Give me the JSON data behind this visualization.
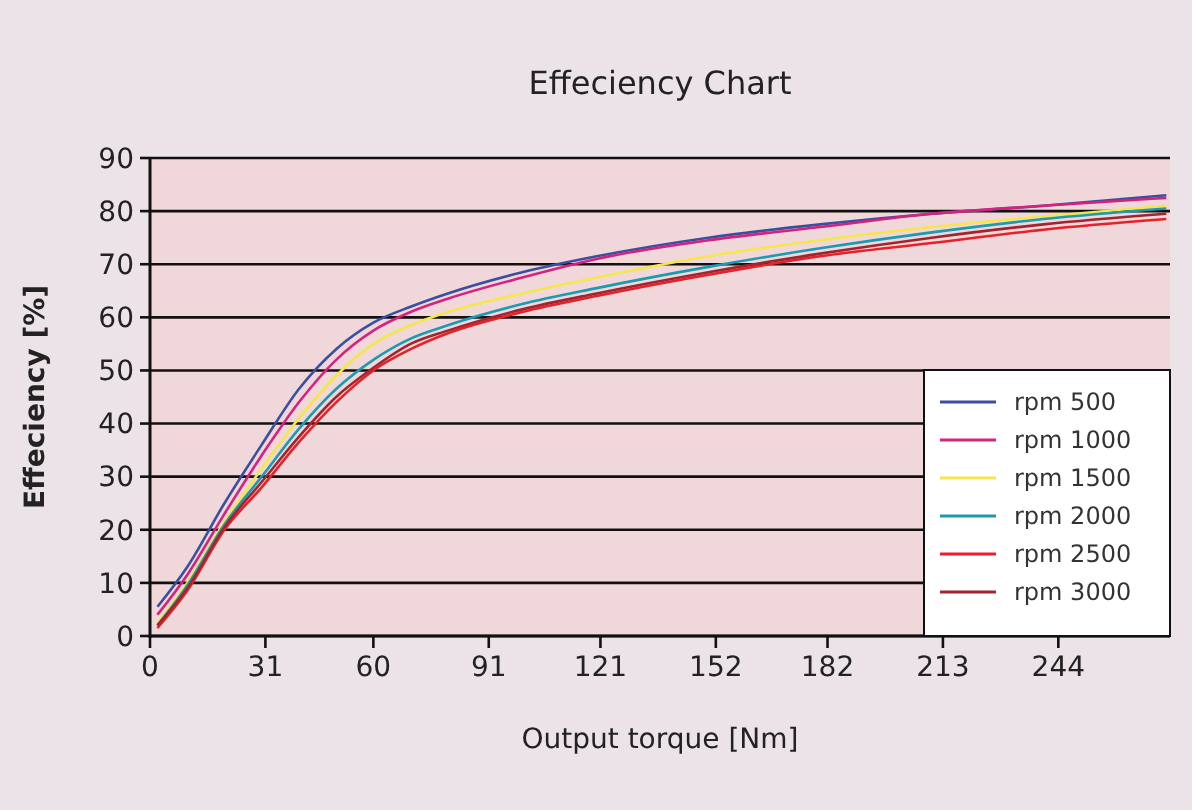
{
  "chart_data": {
    "type": "line",
    "title": "Effeciency Chart",
    "xlabel": "Output torque [Nm]",
    "ylabel": "Effeciency [%]",
    "xlim": [
      0,
      274
    ],
    "xticks": [
      0,
      31,
      60,
      91,
      121,
      152,
      182,
      213,
      244
    ],
    "ylim": [
      0,
      90
    ],
    "yticks": [
      0,
      10,
      20,
      30,
      40,
      50,
      60,
      70,
      80,
      90
    ],
    "grid": "y",
    "legend": "bottom right",
    "marker": "none",
    "line_style": "solid",
    "series": [
      {
        "name": "rpm 500",
        "color": "#3b4fa0",
        "x": [
          2,
          10,
          20,
          30,
          40,
          50,
          60,
          70,
          80,
          100,
          120,
          150,
          180,
          210,
          240,
          273
        ],
        "values": [
          5.5,
          13,
          25,
          36,
          46.5,
          54,
          59,
          62,
          64.5,
          68.5,
          71.5,
          75,
          77.5,
          79.5,
          81,
          83
        ]
      },
      {
        "name": "rpm 1000",
        "color": "#d4237e",
        "x": [
          2,
          10,
          20,
          30,
          40,
          50,
          60,
          70,
          80,
          100,
          120,
          150,
          180,
          210,
          240,
          273
        ],
        "values": [
          4,
          11.5,
          23,
          34,
          44,
          52,
          57.5,
          61,
          63.5,
          67.5,
          71,
          74.5,
          77,
          79.5,
          81,
          82.5
        ]
      },
      {
        "name": "rpm 1500",
        "color": "#f5e64a",
        "x": [
          2,
          10,
          20,
          30,
          40,
          50,
          60,
          70,
          80,
          100,
          120,
          150,
          180,
          210,
          240,
          273
        ],
        "values": [
          2.5,
          10,
          21.5,
          31.5,
          41,
          49,
          55,
          58.5,
          61,
          64.5,
          67.5,
          71.5,
          74.5,
          77,
          79,
          81
        ]
      },
      {
        "name": "rpm 2000",
        "color": "#1a9bb0",
        "x": [
          2,
          10,
          20,
          30,
          40,
          50,
          60,
          70,
          80,
          100,
          120,
          150,
          180,
          210,
          240,
          273
        ],
        "values": [
          2,
          9.5,
          21,
          30,
          39,
          46.5,
          52,
          56,
          58.5,
          62.5,
          65.5,
          69.5,
          73,
          76,
          78.5,
          80.5
        ]
      },
      {
        "name": "rpm 2500",
        "color": "#e8202a",
        "x": [
          2,
          10,
          20,
          30,
          40,
          50,
          60,
          70,
          80,
          100,
          120,
          150,
          180,
          210,
          240,
          273
        ],
        "values": [
          1.5,
          8.5,
          20,
          28,
          36.5,
          44,
          50,
          54,
          57,
          61,
          64,
          68,
          71.5,
          74,
          76.5,
          78.5
        ]
      },
      {
        "name": "rpm 3000",
        "color": "#a0252f",
        "x": [
          2,
          10,
          20,
          30,
          40,
          50,
          60,
          70,
          80,
          100,
          120,
          150,
          180,
          210,
          240,
          273
        ],
        "values": [
          2,
          9,
          20.5,
          29,
          37.5,
          45,
          50.5,
          55,
          57.5,
          61.5,
          64.5,
          68.5,
          72,
          75,
          77.5,
          79.5
        ]
      }
    ]
  }
}
